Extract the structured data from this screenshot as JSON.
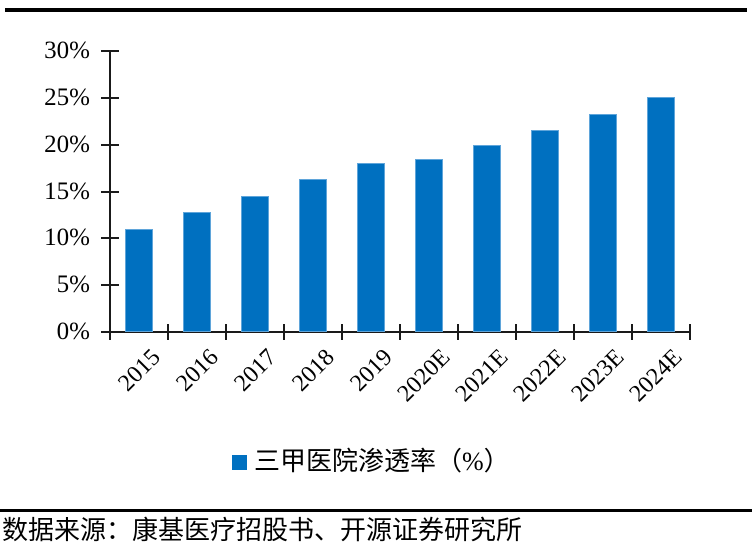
{
  "chart_data": {
    "type": "bar",
    "categories": [
      "2015",
      "2016",
      "2017",
      "2018",
      "2019",
      "2020E",
      "2021E",
      "2022E",
      "2023E",
      "2024E"
    ],
    "values": [
      11.0,
      12.8,
      14.5,
      16.3,
      18.0,
      18.5,
      20.0,
      21.6,
      23.3,
      25.1
    ],
    "series_name": "三甲医院渗透率（%）",
    "title": "",
    "xlabel": "",
    "ylabel": "",
    "ylim": [
      0,
      30
    ],
    "ytick_step": 5,
    "ytick_labels": [
      "0%",
      "5%",
      "10%",
      "15%",
      "20%",
      "25%",
      "30%"
    ],
    "grid": false,
    "legend_position": "bottom",
    "bar_color": "#0070C0",
    "bar_border_color": "#5FA5DA"
  },
  "legend": {
    "label": "三甲医院渗透率（%）",
    "swatch_color": "#0070C0"
  },
  "footer": {
    "source_text": "数据来源：康基医疗招股书、开源证券研究所"
  }
}
